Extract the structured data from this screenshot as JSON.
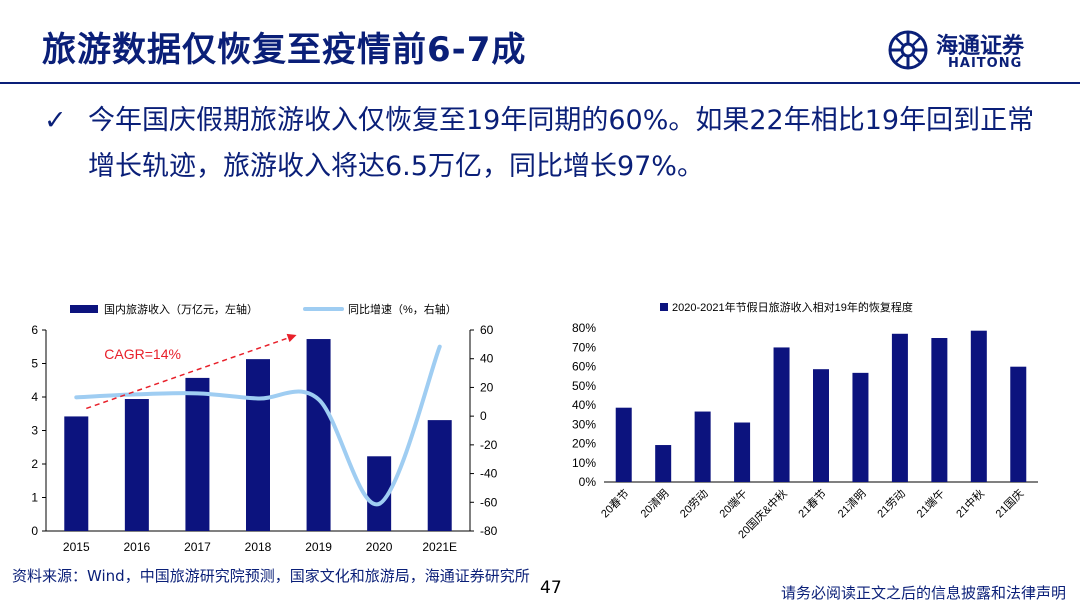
{
  "header": {
    "title": "旅游数据仅恢复至疫情前6-7成",
    "logo_cn": "海通证券",
    "logo_en": "HAITONG"
  },
  "bullet": {
    "check": "✓",
    "text": "今年国庆假期旅游收入仅恢复至19年同期的60%。如果22年相比19年回到正常增长轨迹，旅游收入将达6.5万亿，同比增长97%。"
  },
  "chart_data": [
    {
      "type": "bar",
      "legend": [
        "国内旅游收入（万亿元，左轴）",
        "同比增速（%，右轴）"
      ],
      "categories": [
        "2015",
        "2016",
        "2017",
        "2018",
        "2019",
        "2020",
        "2021E"
      ],
      "series": [
        {
          "name": "国内旅游收入（万亿元，左轴）",
          "type": "bar",
          "axis": "left",
          "values": [
            3.42,
            3.94,
            4.57,
            5.13,
            5.73,
            2.23,
            3.31
          ]
        },
        {
          "name": "同比增速（%，右轴）",
          "type": "line",
          "axis": "right",
          "values": [
            13.1,
            15.2,
            15.9,
            12.3,
            11.7,
            -61.1,
            48.4
          ]
        }
      ],
      "ylim_left": [
        0,
        6
      ],
      "yticks_left": [
        "0",
        "1",
        "2",
        "3",
        "4",
        "5",
        "6"
      ],
      "ylim_right": [
        -80,
        60
      ],
      "yticks_right": [
        "-80",
        "-60",
        "-40",
        "-20",
        "0",
        "20",
        "40",
        "60"
      ],
      "annotation": "CAGR=14%",
      "colors": {
        "bar": "#0c137e",
        "line": "#9fcdf2",
        "annotation": "#e8202a"
      }
    },
    {
      "type": "bar",
      "title": "2020-2021年节假日旅游收入相对19年的恢复程度",
      "categories": [
        "20春节",
        "20清明",
        "20劳动",
        "20端午",
        "20国庆&中秋",
        "21春节",
        "21清明",
        "21劳动",
        "21端午",
        "21中秋",
        "21国庆"
      ],
      "values": [
        38.6,
        19.2,
        36.6,
        30.9,
        69.9,
        58.6,
        56.7,
        77.0,
        74.8,
        78.6,
        59.9
      ],
      "ylim": [
        0,
        80
      ],
      "yticks": [
        "0%",
        "10%",
        "20%",
        "30%",
        "40%",
        "50%",
        "60%",
        "70%",
        "80%"
      ],
      "colors": {
        "bar": "#0c137e"
      }
    }
  ],
  "footer": {
    "source": "资料来源：Wind，中国旅游研究院预测，国家文化和旅游局，海通证券研究所",
    "page": "47",
    "disclaimer": "请务必阅读正文之后的信息披露和法律声明"
  }
}
